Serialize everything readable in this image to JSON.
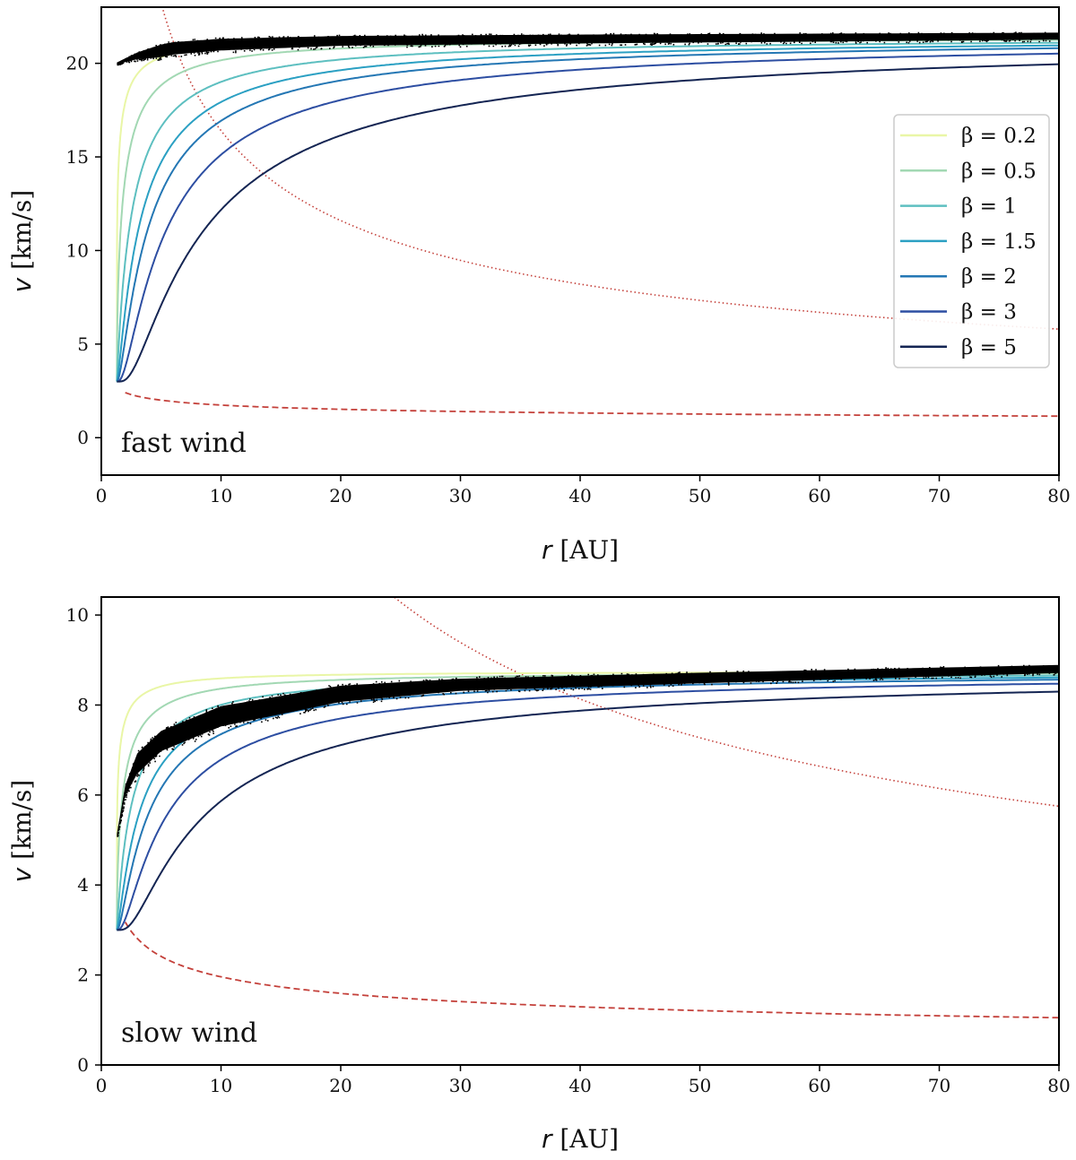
{
  "chart_data": [
    {
      "type": "line",
      "panel_label": "fast wind",
      "xlabel_var": "r",
      "xlabel_unit": " [AU]",
      "ylabel_var": "v",
      "ylabel_unit": " [km/s]",
      "xlim": [
        0,
        80
      ],
      "ylim": [
        -2,
        23
      ],
      "xticks": [
        0,
        10,
        20,
        30,
        40,
        50,
        60,
        70,
        80
      ],
      "yticks": [
        0,
        5,
        10,
        15,
        20
      ],
      "model": {
        "r0": 1.3,
        "v0": 3.0,
        "vinf": 21.4,
        "r_start": 1.3,
        "r_end": 80
      },
      "series": [
        {
          "name": "β = 0.2",
          "beta": 0.2,
          "color": "#e9f6a6"
        },
        {
          "name": "β = 0.5",
          "beta": 0.5,
          "color": "#a2d8b3"
        },
        {
          "name": "β = 1",
          "beta": 1,
          "color": "#5dbfc0"
        },
        {
          "name": "β = 1.5",
          "beta": 1.5,
          "color": "#2ba0c3"
        },
        {
          "name": "β = 2",
          "beta": 2,
          "color": "#2477b4"
        },
        {
          "name": "β = 3",
          "beta": 3,
          "color": "#2d4ea2"
        },
        {
          "name": "β = 5",
          "beta": 5,
          "color": "#142553"
        }
      ],
      "data_band": {
        "description": "simulation data points",
        "color": "#000000",
        "points": [
          [
            1.3,
            20.0
          ],
          [
            3,
            20.4
          ],
          [
            6,
            20.8
          ],
          [
            10,
            21.0
          ],
          [
            20,
            21.2
          ],
          [
            40,
            21.3
          ],
          [
            80,
            21.45
          ]
        ],
        "half_width": [
          [
            1.3,
            0.06
          ],
          [
            5,
            0.45
          ],
          [
            20,
            0.35
          ],
          [
            80,
            0.25
          ]
        ]
      },
      "dotted_curve": {
        "color": "#c4403a",
        "power": -0.5,
        "anchor": [
          80,
          5.8
        ],
        "r_from": 2,
        "r_to": 80
      },
      "dashed_curve": {
        "color": "#c4403a",
        "power": -0.2,
        "anchor": [
          80,
          1.15
        ],
        "r_from": 2,
        "r_to": 80
      },
      "legend": {
        "title": "",
        "location": "right"
      }
    },
    {
      "type": "line",
      "panel_label": "slow wind",
      "xlabel_var": "r",
      "xlabel_unit": " [AU]",
      "ylabel_var": "v",
      "ylabel_unit": " [km/s]",
      "xlim": [
        0,
        80
      ],
      "ylim": [
        0,
        10.4
      ],
      "xticks": [
        0,
        10,
        20,
        30,
        40,
        50,
        60,
        70,
        80
      ],
      "yticks": [
        0,
        2,
        4,
        6,
        8,
        10
      ],
      "model": {
        "r0": 1.3,
        "v0": 3.0,
        "vinf": 8.75,
        "r_start": 1.3,
        "r_end": 80
      },
      "series": [
        {
          "name": "β = 0.2",
          "beta": 0.2,
          "color": "#e9f6a6"
        },
        {
          "name": "β = 0.5",
          "beta": 0.5,
          "color": "#a2d8b3"
        },
        {
          "name": "β = 1",
          "beta": 1,
          "color": "#5dbfc0"
        },
        {
          "name": "β = 1.5",
          "beta": 1.5,
          "color": "#2ba0c3"
        },
        {
          "name": "β = 2",
          "beta": 2,
          "color": "#2477b4"
        },
        {
          "name": "β = 3",
          "beta": 3,
          "color": "#2d4ea2"
        },
        {
          "name": "β = 5",
          "beta": 5,
          "color": "#142553"
        }
      ],
      "data_band": {
        "description": "simulation data points",
        "color": "#000000",
        "points": [
          [
            1.3,
            5.1
          ],
          [
            2,
            6.1
          ],
          [
            3,
            6.7
          ],
          [
            5,
            7.2
          ],
          [
            10,
            7.75
          ],
          [
            20,
            8.25
          ],
          [
            30,
            8.45
          ],
          [
            50,
            8.6
          ],
          [
            80,
            8.8
          ]
        ],
        "half_width": [
          [
            1.3,
            0.05
          ],
          [
            3,
            0.3
          ],
          [
            10,
            0.3
          ],
          [
            30,
            0.18
          ],
          [
            80,
            0.12
          ]
        ]
      },
      "dotted_curve": {
        "color": "#c4403a",
        "power": -0.5,
        "anchor": [
          80,
          5.75
        ],
        "r_from": 15,
        "r_to": 80
      },
      "dashed_curve": {
        "color": "#c4403a",
        "power": -0.3,
        "anchor": [
          80,
          1.05
        ],
        "r_from": 2,
        "r_to": 80
      }
    }
  ]
}
